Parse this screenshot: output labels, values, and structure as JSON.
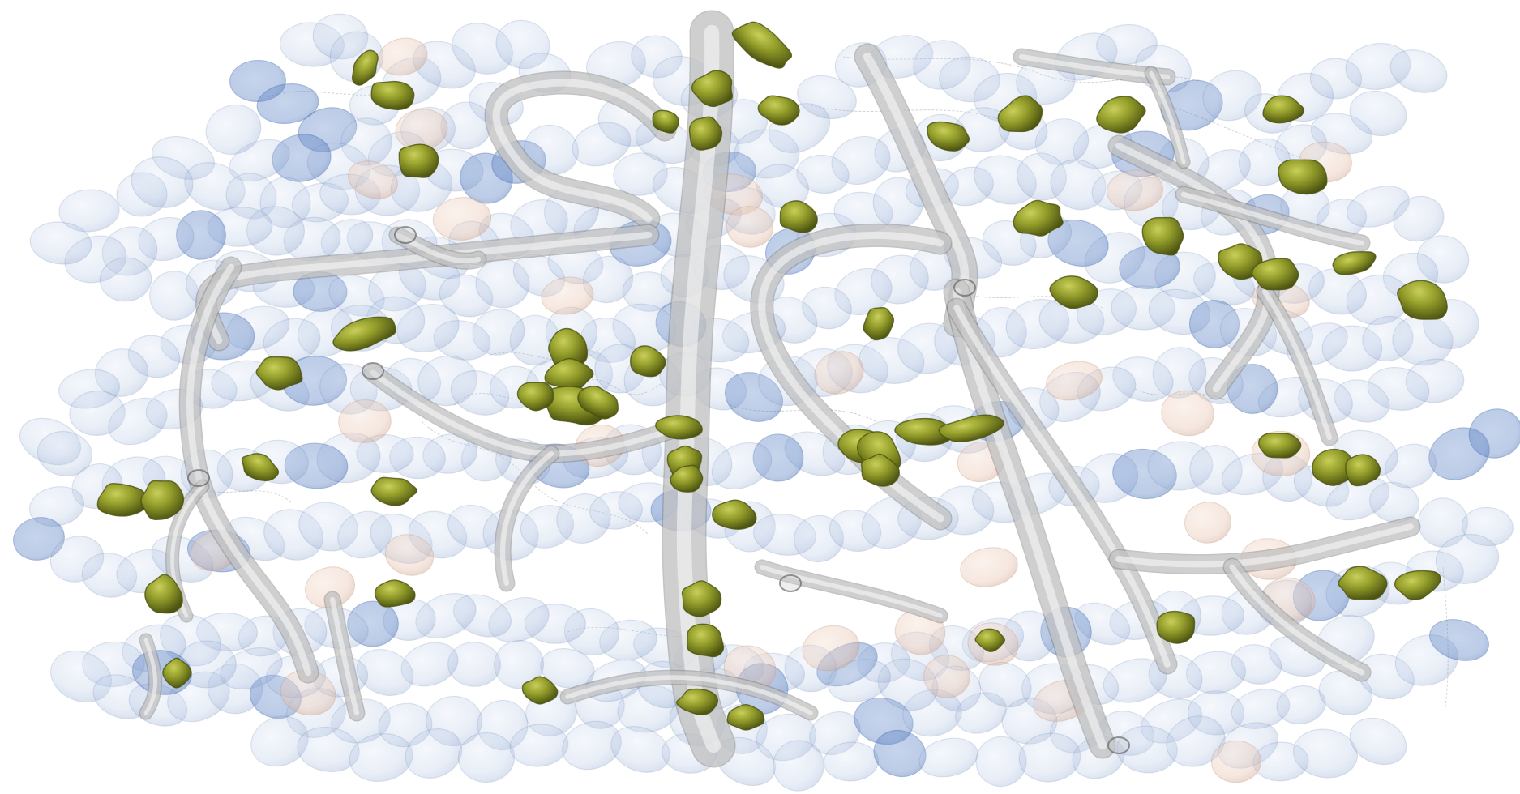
{
  "image": {
    "kind": "3d-volume-render",
    "background_color": "#ffffff"
  },
  "palette": {
    "cell_fill": "#9fb7dc",
    "cell_stroke": "#6f88b3",
    "cell_dark": "#3f68b0",
    "peach_fill": "#e7c3ae",
    "peach_stroke": "#c79a82",
    "green_fill": "#8a9428",
    "green_dark": "#4b5210",
    "green_light": "#b8bf4c",
    "vessel_outline": "#7a7a7a",
    "vessel_body": "#d9d9d9",
    "vessel_highlight": "#f7f7f7",
    "fiber_color": "#9a9a9a"
  },
  "structures": {
    "blue_ellipses": "translucent-blue-spheroids",
    "peach_ellipses": "translucent-peach-spheroids",
    "green_blobs": "olive-green-bodies",
    "vessels": "grey-tubular-vessels",
    "fibers": "fine-grey-fibers"
  }
}
